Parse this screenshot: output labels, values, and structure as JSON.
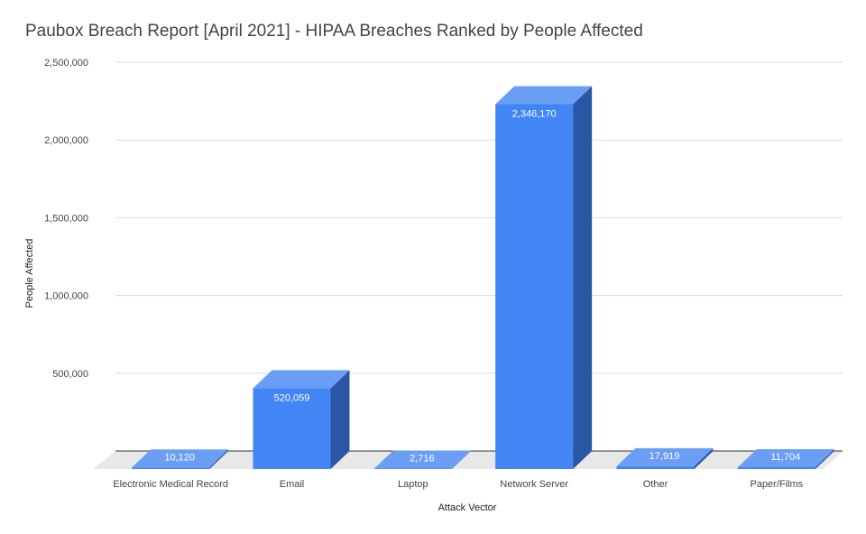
{
  "chart_data": {
    "type": "bar",
    "title": "Paubox Breach Report [April 2021] - HIPAA Breaches Ranked by People Affected",
    "xlabel": "Attack Vector",
    "ylabel": "People Affected",
    "categories": [
      "Electronic Medical Record",
      "Email",
      "Laptop",
      "Network Server",
      "Other",
      "Paper/Films"
    ],
    "values": [
      10120,
      520059,
      2716,
      2346170,
      17919,
      11704
    ],
    "data_labels": [
      "10,120",
      "520,059",
      "2,716",
      "2,346,170",
      "17,919",
      "11,704"
    ],
    "ylim": [
      0,
      2500000
    ],
    "yticks": [
      500000,
      1000000,
      1500000,
      2000000,
      2500000
    ],
    "ytick_labels": [
      "500,000",
      "1,000,000",
      "1,500,000",
      "2,000,000",
      "2,500,000"
    ],
    "grid": true,
    "legend": "none",
    "style": "3d",
    "colors": {
      "front": "#4285f4",
      "side": "#2a56a6",
      "top": "#6a9ef5",
      "floor": "#e8e8e8",
      "grid": "#d9d9d9"
    }
  }
}
